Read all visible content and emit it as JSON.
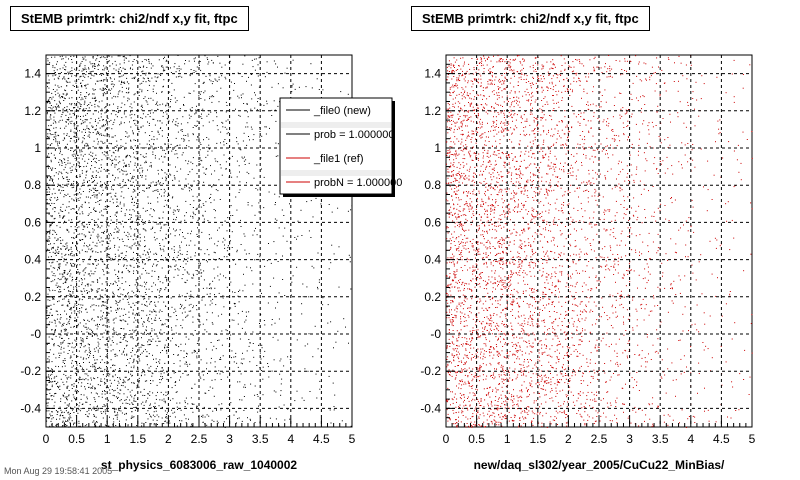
{
  "footer_text": "Mon Aug 29 19:58:41 2005",
  "legend": {
    "entries": [
      {
        "label": "_file0 (new)",
        "color": "#000000"
      },
      {
        "label": "prob = 1.000000",
        "color": "#000000"
      },
      {
        "label": "_file1 (ref)",
        "color": "#cc0000"
      },
      {
        "label": "probN = 1.000000",
        "color": "#cc0000"
      }
    ]
  },
  "chart_data": [
    {
      "type": "scatter",
      "title": "StEMB primtrk: chi2/ndf x,y fit, ftpc",
      "xlabel": "st_physics_6083006_raw_1040002",
      "ylabel": "",
      "xlim": [
        0,
        5
      ],
      "ylim": [
        -0.5,
        1.5
      ],
      "x_ticks": [
        "0",
        "0.5",
        "1",
        "1.5",
        "2",
        "2.5",
        "3",
        "3.5",
        "4",
        "4.5",
        "5"
      ],
      "y_ticks": [
        "-0.4",
        "-0.2",
        "-0",
        "0.2",
        "0.4",
        "0.6",
        "0.8",
        "1",
        "1.2",
        "1.4"
      ],
      "grid": true,
      "legend_position": "top-right",
      "series": [
        {
          "name": "_file0 (new)",
          "color": "#000000",
          "density_by_x": [
            {
              "x": [
                0,
                0.5
              ],
              "density": 0.95
            },
            {
              "x": [
                0.5,
                1.0
              ],
              "density": 0.9
            },
            {
              "x": [
                1.0,
                1.5
              ],
              "density": 0.75
            },
            {
              "x": [
                1.5,
                2.0
              ],
              "density": 0.6
            },
            {
              "x": [
                2.0,
                2.5
              ],
              "density": 0.4
            },
            {
              "x": [
                2.5,
                3.0
              ],
              "density": 0.3
            },
            {
              "x": [
                3.0,
                3.5
              ],
              "density": 0.2
            },
            {
              "x": [
                3.5,
                4.0
              ],
              "density": 0.12
            },
            {
              "x": [
                4.0,
                4.5
              ],
              "density": 0.07
            },
            {
              "x": [
                4.5,
                5.0
              ],
              "density": 0.05
            }
          ]
        }
      ]
    },
    {
      "type": "scatter",
      "title": "StEMB primtrk: chi2/ndf x,y fit, ftpc",
      "xlabel": "new/daq_sl302/year_2005/CuCu22_MinBias/",
      "ylabel": "",
      "xlim": [
        0,
        5
      ],
      "ylim": [
        -0.5,
        1.5
      ],
      "x_ticks": [
        "0",
        "0.5",
        "1",
        "1.5",
        "2",
        "2.5",
        "3",
        "3.5",
        "4",
        "4.5",
        "5"
      ],
      "y_ticks": [
        "-0.4",
        "-0.2",
        "-0",
        "0.2",
        "0.4",
        "0.6",
        "0.8",
        "1",
        "1.2",
        "1.4"
      ],
      "grid": true,
      "series": [
        {
          "name": "_file1 (ref)",
          "color": "#cc0000",
          "density_by_x": [
            {
              "x": [
                0,
                0.5
              ],
              "density": 0.95
            },
            {
              "x": [
                0.5,
                1.0
              ],
              "density": 0.9
            },
            {
              "x": [
                1.0,
                1.5
              ],
              "density": 0.75
            },
            {
              "x": [
                1.5,
                2.0
              ],
              "density": 0.6
            },
            {
              "x": [
                2.0,
                2.5
              ],
              "density": 0.4
            },
            {
              "x": [
                2.5,
                3.0
              ],
              "density": 0.3
            },
            {
              "x": [
                3.0,
                3.5
              ],
              "density": 0.2
            },
            {
              "x": [
                3.5,
                4.0
              ],
              "density": 0.12
            },
            {
              "x": [
                4.0,
                4.5
              ],
              "density": 0.07
            },
            {
              "x": [
                4.5,
                5.0
              ],
              "density": 0.05
            }
          ]
        }
      ]
    }
  ]
}
